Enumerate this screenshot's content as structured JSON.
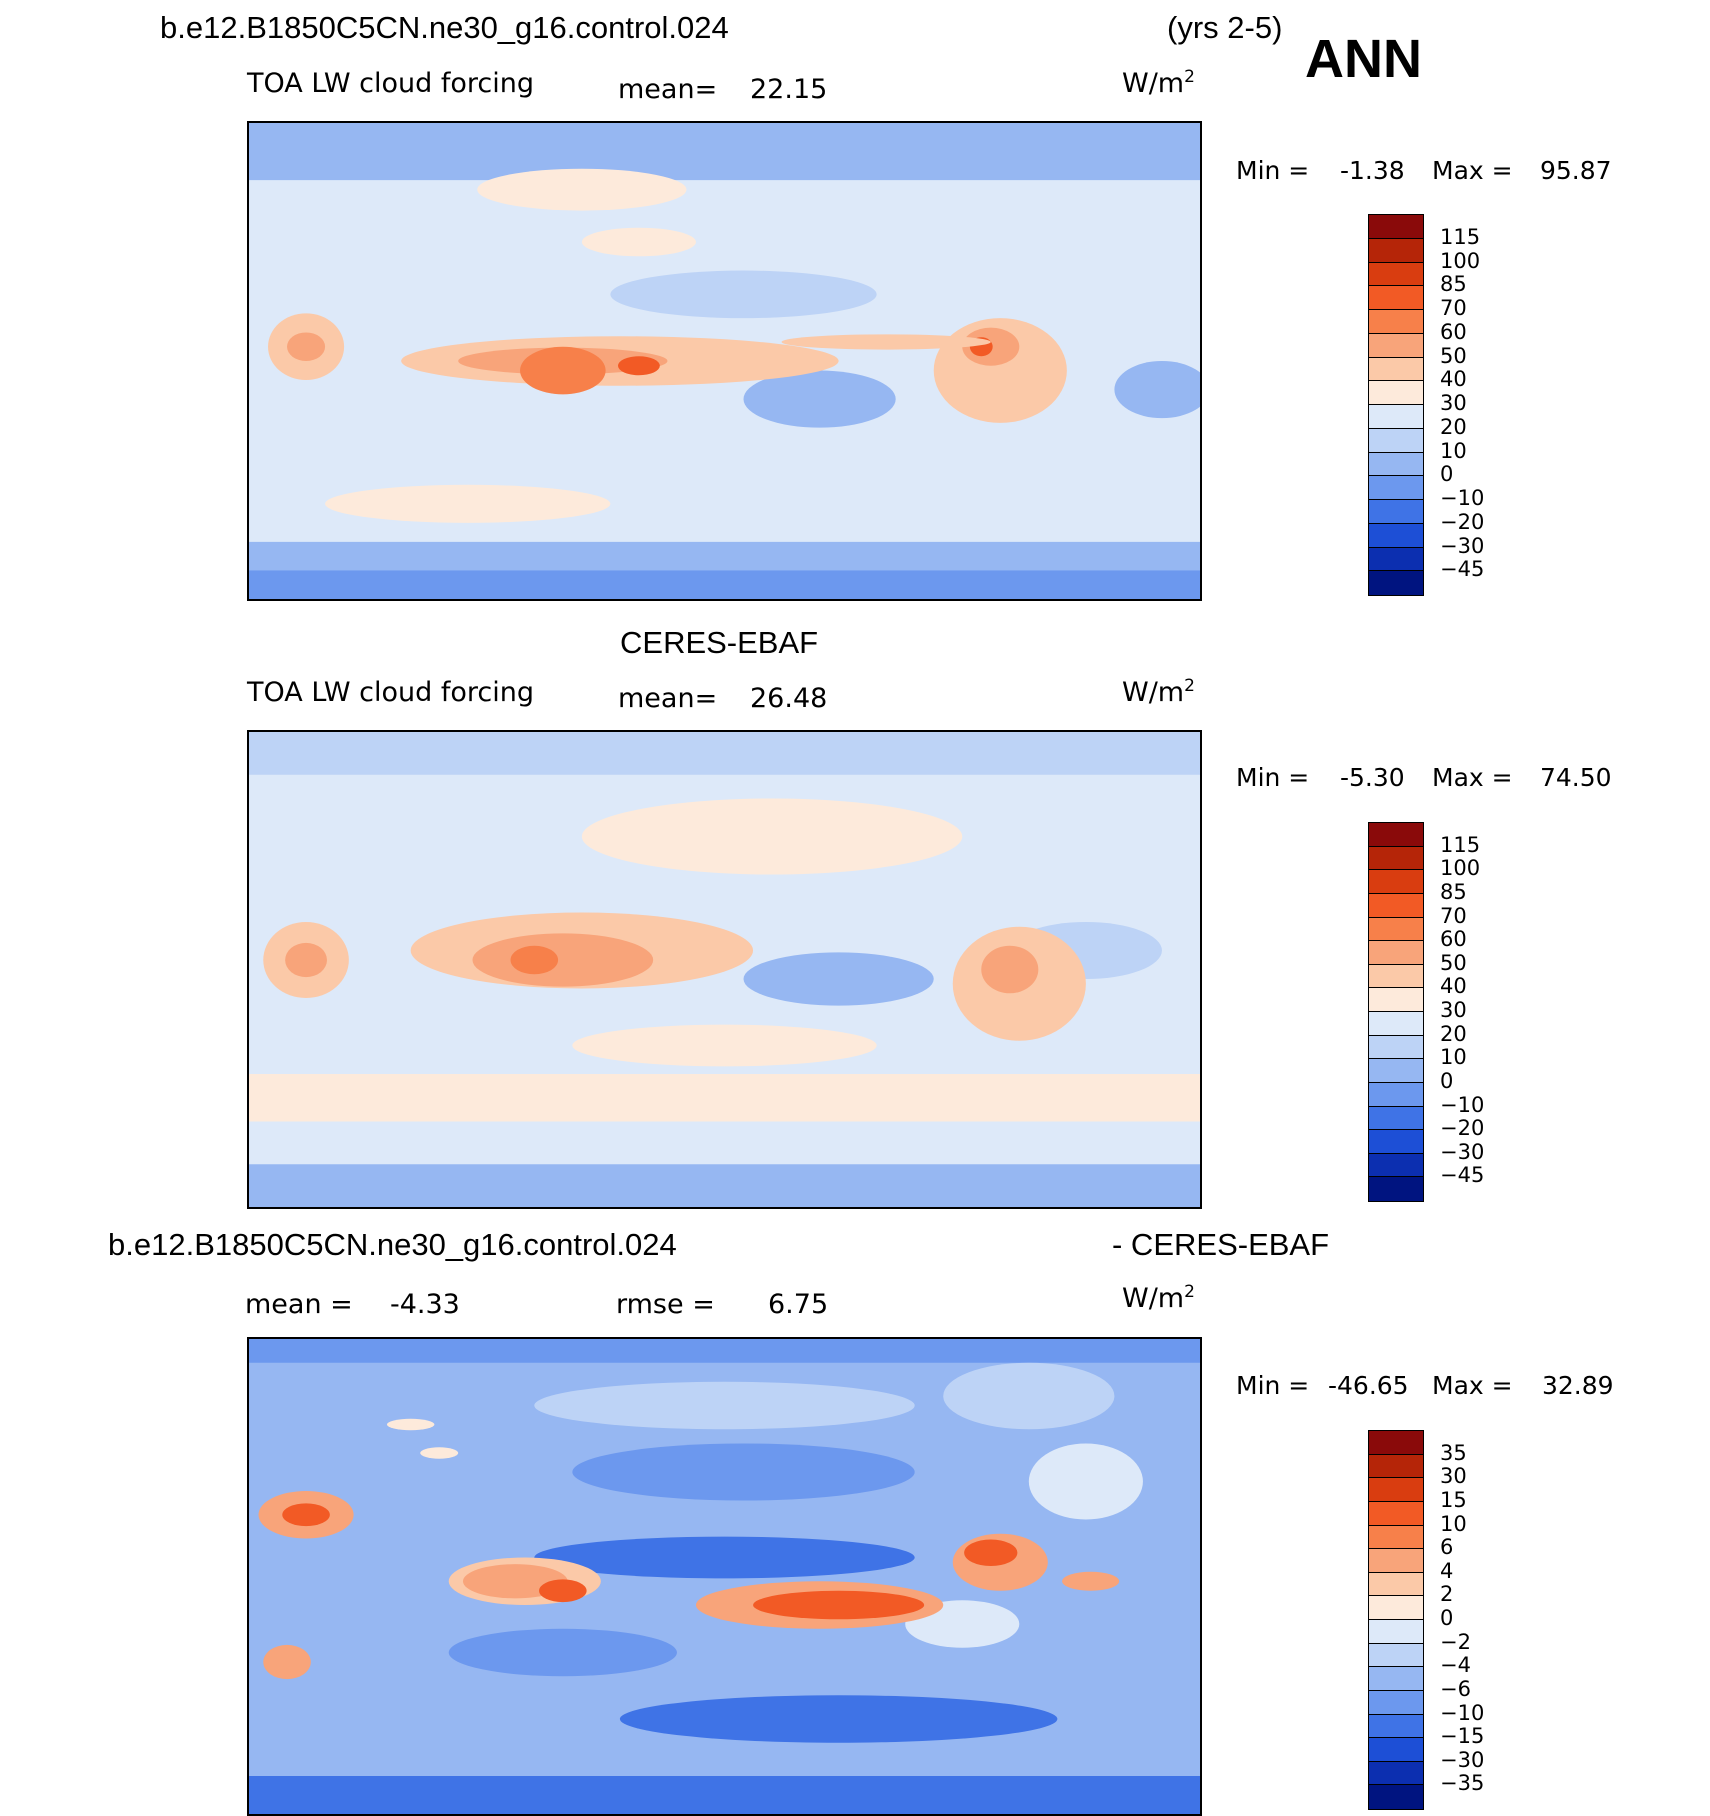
{
  "header": {
    "case_title": "b.e12.B1850C5CN.ne30_g16.control.024",
    "years": "(yrs 2-5)",
    "season": "ANN"
  },
  "panels": [
    {
      "id": "model",
      "heading": "",
      "field": "TOA LW cloud forcing",
      "mean_label": "mean=",
      "mean_value": "22.15",
      "units": "W/m",
      "units_sup": "2",
      "min_label": "Min =",
      "min_value": "-1.38",
      "max_label": "Max =",
      "max_value": "95.87",
      "colorbar_levels": [
        "115",
        "100",
        "85",
        "70",
        "60",
        "50",
        "40",
        "30",
        "20",
        "10",
        "0",
        "-10",
        "-20",
        "-30",
        "-45"
      ]
    },
    {
      "id": "obs",
      "heading": "CERES-EBAF",
      "field": "TOA LW cloud forcing",
      "mean_label": "mean=",
      "mean_value": "26.48",
      "units": "W/m",
      "units_sup": "2",
      "min_label": "Min =",
      "min_value": "-5.30",
      "max_label": "Max =",
      "max_value": "74.50",
      "colorbar_levels": [
        "115",
        "100",
        "85",
        "70",
        "60",
        "50",
        "40",
        "30",
        "20",
        "10",
        "0",
        "-10",
        "-20",
        "-30",
        "-45"
      ]
    },
    {
      "id": "diff",
      "heading_left": "b.e12.B1850C5CN.ne30_g16.control.024",
      "heading_right": "- CERES-EBAF",
      "mean_label": "mean =",
      "mean_value": "-4.33",
      "rmse_label": "rmse =",
      "rmse_value": "6.75",
      "units": "W/m",
      "units_sup": "2",
      "min_label": "Min =",
      "min_value": "-46.65",
      "max_label": "Max =",
      "max_value": "32.89",
      "colorbar_levels": [
        "35",
        "30",
        "15",
        "10",
        "6",
        "4",
        "2",
        "0",
        "-2",
        "-4",
        "-6",
        "-10",
        "-15",
        "-30",
        "-35"
      ]
    }
  ],
  "colors": {
    "colorbar_16": [
      "#8a0a0a",
      "#b52508",
      "#d93d10",
      "#f25a25",
      "#f7804a",
      "#f8a47a",
      "#fbc9a8",
      "#fdeadb",
      "#dde9f9",
      "#bdd3f6",
      "#96b7f2",
      "#6c98ee",
      "#3f73e6",
      "#1d4fd6",
      "#0c2fb0",
      "#001480"
    ],
    "map_base": "#dde9f9",
    "coastline": "#000000"
  }
}
